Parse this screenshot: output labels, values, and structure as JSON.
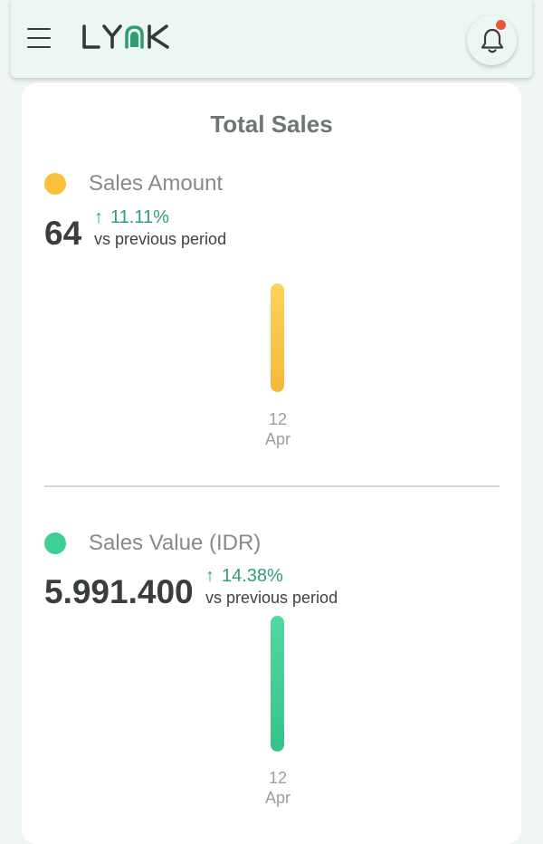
{
  "header": {
    "logo_text": "LYNK",
    "notification_badge": true
  },
  "card": {
    "title": "Total Sales",
    "metrics": [
      {
        "name": "Sales Amount",
        "dot_color": "#fbbf3c",
        "value": "64",
        "change": "11.11%",
        "change_direction": "up",
        "comparison": "vs previous period",
        "chart_data": {
          "type": "bar",
          "categories": [
            "12 Apr"
          ],
          "values": [
            64
          ],
          "color": "#fbbf3c"
        },
        "x_label": {
          "day": "12",
          "month": "Apr"
        }
      },
      {
        "name": "Sales Value (IDR)",
        "dot_color": "#3ecf96",
        "value": "5.991.400",
        "change": "14.38%",
        "change_direction": "up",
        "comparison": "vs previous period",
        "chart_data": {
          "type": "bar",
          "categories": [
            "12 Apr"
          ],
          "values": [
            5991400
          ],
          "color": "#3ecf96"
        },
        "x_label": {
          "day": "12",
          "month": "Apr"
        }
      }
    ]
  },
  "colors": {
    "accent_green": "#2e9e72",
    "notification": "#e6583b"
  }
}
